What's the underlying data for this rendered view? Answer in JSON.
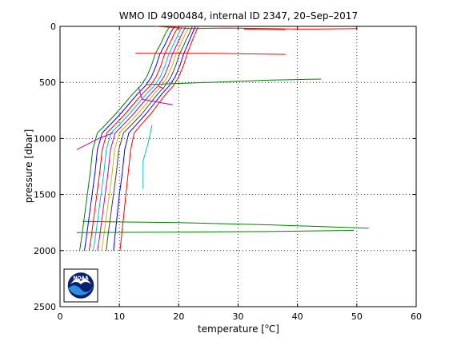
{
  "chart_data": {
    "type": "line",
    "title": "WMO ID 4900484, internal ID 2347, 20–Sep–2017",
    "xlabel_pre": "temperature [",
    "xlabel_sup": "o",
    "xlabel_post": "C]",
    "ylabel": "pressure [dbar]",
    "xlim": [
      0,
      60
    ],
    "ylim": [
      2500,
      0
    ],
    "y_reversed": true,
    "xticks": [
      0,
      10,
      20,
      30,
      40,
      50,
      60
    ],
    "yticks": [
      0,
      500,
      1000,
      1500,
      2000,
      2500
    ],
    "grid": true,
    "logo_text": "NOAA",
    "series": [
      {
        "color": "#008000",
        "points": [
          [
            18.5,
            0
          ],
          [
            17.8,
            60
          ],
          [
            17,
            150
          ],
          [
            16,
            250
          ],
          [
            15.4,
            350
          ],
          [
            14.6,
            450
          ],
          [
            13.6,
            530
          ],
          [
            12.3,
            600
          ],
          [
            11,
            680
          ],
          [
            9.4,
            780
          ],
          [
            7.6,
            880
          ],
          [
            6.3,
            950
          ],
          [
            5.5,
            1100
          ],
          [
            5.1,
            1300
          ],
          [
            4.6,
            1500
          ],
          [
            4.1,
            1700
          ],
          [
            3.6,
            1900
          ],
          [
            3.3,
            2000
          ]
        ]
      },
      {
        "color": "#0000ff",
        "points": [
          [
            19.3,
            0
          ],
          [
            18.6,
            60
          ],
          [
            17.8,
            150
          ],
          [
            16.8,
            250
          ],
          [
            16.2,
            350
          ],
          [
            15.4,
            450
          ],
          [
            14.4,
            530
          ],
          [
            13.1,
            600
          ],
          [
            11.8,
            680
          ],
          [
            10.2,
            780
          ],
          [
            8.4,
            880
          ],
          [
            7.1,
            950
          ],
          [
            6.3,
            1100
          ],
          [
            5.9,
            1300
          ],
          [
            5.4,
            1500
          ],
          [
            4.9,
            1700
          ],
          [
            4.4,
            1900
          ],
          [
            4.1,
            2000
          ]
        ]
      },
      {
        "color": "#ff0000",
        "points": [
          [
            20.0,
            0
          ],
          [
            19.3,
            60
          ],
          [
            18.5,
            150
          ],
          [
            17.6,
            250
          ],
          [
            17.0,
            350
          ],
          [
            16.2,
            450
          ],
          [
            15.2,
            530
          ],
          [
            13.9,
            600
          ],
          [
            12.6,
            680
          ],
          [
            11.0,
            780
          ],
          [
            9.2,
            880
          ],
          [
            7.9,
            950
          ],
          [
            7.1,
            1100
          ],
          [
            6.7,
            1300
          ],
          [
            6.2,
            1500
          ],
          [
            5.7,
            1700
          ],
          [
            5.2,
            1900
          ],
          [
            4.9,
            2000
          ]
        ]
      },
      {
        "color": "#00bfbf",
        "points": [
          [
            20.6,
            0
          ],
          [
            20.0,
            60
          ],
          [
            19.2,
            150
          ],
          [
            18.3,
            250
          ],
          [
            17.7,
            350
          ],
          [
            16.9,
            450
          ],
          [
            15.9,
            530
          ],
          [
            14.6,
            600
          ],
          [
            13.3,
            680
          ],
          [
            11.7,
            780
          ],
          [
            9.9,
            880
          ],
          [
            8.6,
            950
          ],
          [
            7.8,
            1100
          ],
          [
            7.4,
            1300
          ],
          [
            6.9,
            1500
          ],
          [
            6.4,
            1700
          ],
          [
            5.9,
            1900
          ],
          [
            5.6,
            2000
          ]
        ]
      },
      {
        "color": "#bf00bf",
        "points": [
          [
            21.2,
            0
          ],
          [
            20.6,
            60
          ],
          [
            19.8,
            150
          ],
          [
            18.9,
            250
          ],
          [
            18.3,
            350
          ],
          [
            17.5,
            450
          ],
          [
            16.5,
            530
          ],
          [
            15.3,
            600
          ],
          [
            14.0,
            680
          ],
          [
            12.4,
            780
          ],
          [
            10.6,
            880
          ],
          [
            9.3,
            950
          ],
          [
            8.5,
            1100
          ],
          [
            8.1,
            1300
          ],
          [
            7.6,
            1500
          ],
          [
            7.1,
            1700
          ],
          [
            6.6,
            1900
          ],
          [
            6.3,
            2000
          ]
        ]
      },
      {
        "color": "#bfbf00",
        "points": [
          [
            21.8,
            0
          ],
          [
            21.2,
            60
          ],
          [
            20.4,
            150
          ],
          [
            19.5,
            250
          ],
          [
            18.9,
            350
          ],
          [
            18.1,
            450
          ],
          [
            17.1,
            530
          ],
          [
            15.9,
            600
          ],
          [
            14.7,
            680
          ],
          [
            13.1,
            780
          ],
          [
            11.3,
            880
          ],
          [
            10.0,
            950
          ],
          [
            9.2,
            1100
          ],
          [
            8.8,
            1300
          ],
          [
            8.3,
            1500
          ],
          [
            7.8,
            1700
          ],
          [
            7.3,
            1900
          ],
          [
            7.0,
            2000
          ]
        ]
      },
      {
        "color": "#404040",
        "points": [
          [
            22.3,
            0
          ],
          [
            21.8,
            60
          ],
          [
            21.0,
            150
          ],
          [
            20.1,
            250
          ],
          [
            19.5,
            350
          ],
          [
            18.7,
            450
          ],
          [
            17.7,
            530
          ],
          [
            16.5,
            600
          ],
          [
            15.3,
            680
          ],
          [
            13.8,
            780
          ],
          [
            12.0,
            880
          ],
          [
            10.7,
            950
          ],
          [
            9.9,
            1100
          ],
          [
            9.5,
            1300
          ],
          [
            9.0,
            1500
          ],
          [
            8.5,
            1700
          ],
          [
            8.0,
            1900
          ],
          [
            7.8,
            2000
          ]
        ]
      },
      {
        "color": "#0000ff",
        "points": [
          [
            22.8,
            0
          ],
          [
            22.3,
            60
          ],
          [
            21.6,
            150
          ],
          [
            20.8,
            250
          ],
          [
            20.2,
            350
          ],
          [
            19.4,
            450
          ],
          [
            18.4,
            530
          ],
          [
            17.2,
            600
          ],
          [
            16.0,
            680
          ],
          [
            14.5,
            780
          ],
          [
            12.8,
            880
          ],
          [
            11.6,
            950
          ],
          [
            10.9,
            1100
          ],
          [
            10.5,
            1300
          ],
          [
            10.0,
            1500
          ],
          [
            9.6,
            1700
          ],
          [
            9.2,
            1900
          ],
          [
            9.0,
            2000
          ]
        ]
      },
      {
        "color": "#ff0000",
        "points": [
          [
            23.3,
            0
          ],
          [
            22.8,
            60
          ],
          [
            22.1,
            150
          ],
          [
            21.4,
            250
          ],
          [
            20.8,
            350
          ],
          [
            20.0,
            450
          ],
          [
            19.1,
            530
          ],
          [
            17.9,
            600
          ],
          [
            16.7,
            680
          ],
          [
            15.3,
            780
          ],
          [
            13.6,
            880
          ],
          [
            12.5,
            950
          ],
          [
            11.9,
            1100
          ],
          [
            11.5,
            1300
          ],
          [
            11.1,
            1500
          ],
          [
            10.7,
            1700
          ],
          [
            10.3,
            1900
          ],
          [
            10.1,
            2000
          ]
        ]
      },
      {
        "color": "#ff0000",
        "points": [
          [
            16.0,
            0
          ],
          [
            19.0,
            10
          ],
          [
            22.0,
            20
          ],
          [
            28.0,
            15
          ],
          [
            35.0,
            20
          ],
          [
            42.0,
            25
          ],
          [
            50.0,
            20
          ]
        ]
      },
      {
        "color": "#ff0000",
        "points": [
          [
            38.0,
            30
          ],
          [
            31.0,
            25
          ]
        ]
      },
      {
        "color": "#ff0000",
        "points": [
          [
            12.7,
            240
          ],
          [
            25.0,
            240
          ],
          [
            38.0,
            250
          ]
        ]
      },
      {
        "color": "#008000",
        "points": [
          [
            14.5,
            520
          ],
          [
            25.0,
            500
          ],
          [
            35.0,
            480
          ],
          [
            44.0,
            470
          ]
        ]
      },
      {
        "color": "#bf00bf",
        "points": [
          [
            13.2,
            540
          ],
          [
            13.8,
            650
          ],
          [
            19.0,
            700
          ]
        ]
      },
      {
        "color": "#bf00bf",
        "points": [
          [
            16.5,
            530
          ],
          [
            17.5,
            560
          ]
        ]
      },
      {
        "color": "#bf00bf",
        "points": [
          [
            2.8,
            1100
          ],
          [
            6.5,
            1000
          ],
          [
            9.0,
            950
          ]
        ]
      },
      {
        "color": "#00bfbf",
        "points": [
          [
            15.5,
            880
          ],
          [
            14.8,
            1050
          ],
          [
            14.0,
            1200
          ],
          [
            14.0,
            1450
          ]
        ]
      },
      {
        "color": "#008000",
        "points": [
          [
            3.8,
            1740
          ],
          [
            20.0,
            1750
          ],
          [
            35.0,
            1770
          ],
          [
            52.0,
            1800
          ]
        ]
      },
      {
        "color": "#008000",
        "points": [
          [
            2.8,
            1840
          ],
          [
            20.0,
            1835
          ],
          [
            35.0,
            1830
          ],
          [
            49.5,
            1820
          ]
        ]
      }
    ]
  }
}
